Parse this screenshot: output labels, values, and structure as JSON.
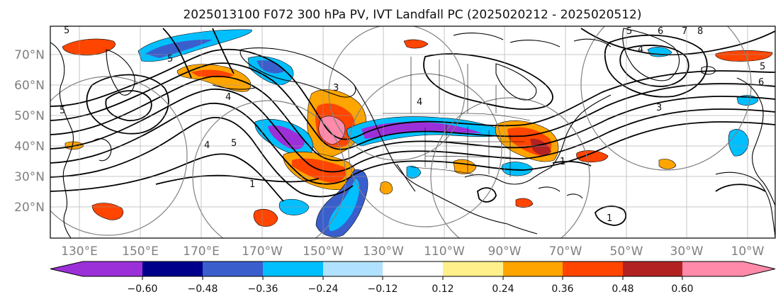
{
  "title": "2025013100 F072 300 hPa PV, IVT Landfall PC (2025020212 - 2025020512)",
  "map": {
    "latitude_labels": [
      "70°N",
      "60°N",
      "50°N",
      "40°N",
      "30°N",
      "20°N"
    ],
    "longitude_labels": [
      "130°E",
      "150°E",
      "170°E",
      "170°W",
      "150°W",
      "130°W",
      "110°W",
      "90°W",
      "70°W",
      "50°W",
      "30°W",
      "10°W"
    ],
    "contour_labels": [
      "5",
      "5",
      "4",
      "5",
      "4",
      "5",
      "1",
      "1",
      "1",
      "5",
      "6",
      "7",
      "8",
      "4",
      "3",
      "4",
      "3",
      "6",
      "5"
    ]
  },
  "colorbar": {
    "tick_labels": [
      "−0.60",
      "−0.48",
      "−0.36",
      "−0.24",
      "−0.12",
      "0.12",
      "0.24",
      "0.36",
      "0.48",
      "0.60"
    ],
    "colors": [
      "#9b30d9",
      "#00008b",
      "#3a5fcd",
      "#00bfff",
      "#b0e2ff",
      "#ffffff",
      "#fff08c",
      "#ffa500",
      "#ff4500",
      "#b22222",
      "#ff8aaa"
    ]
  }
}
